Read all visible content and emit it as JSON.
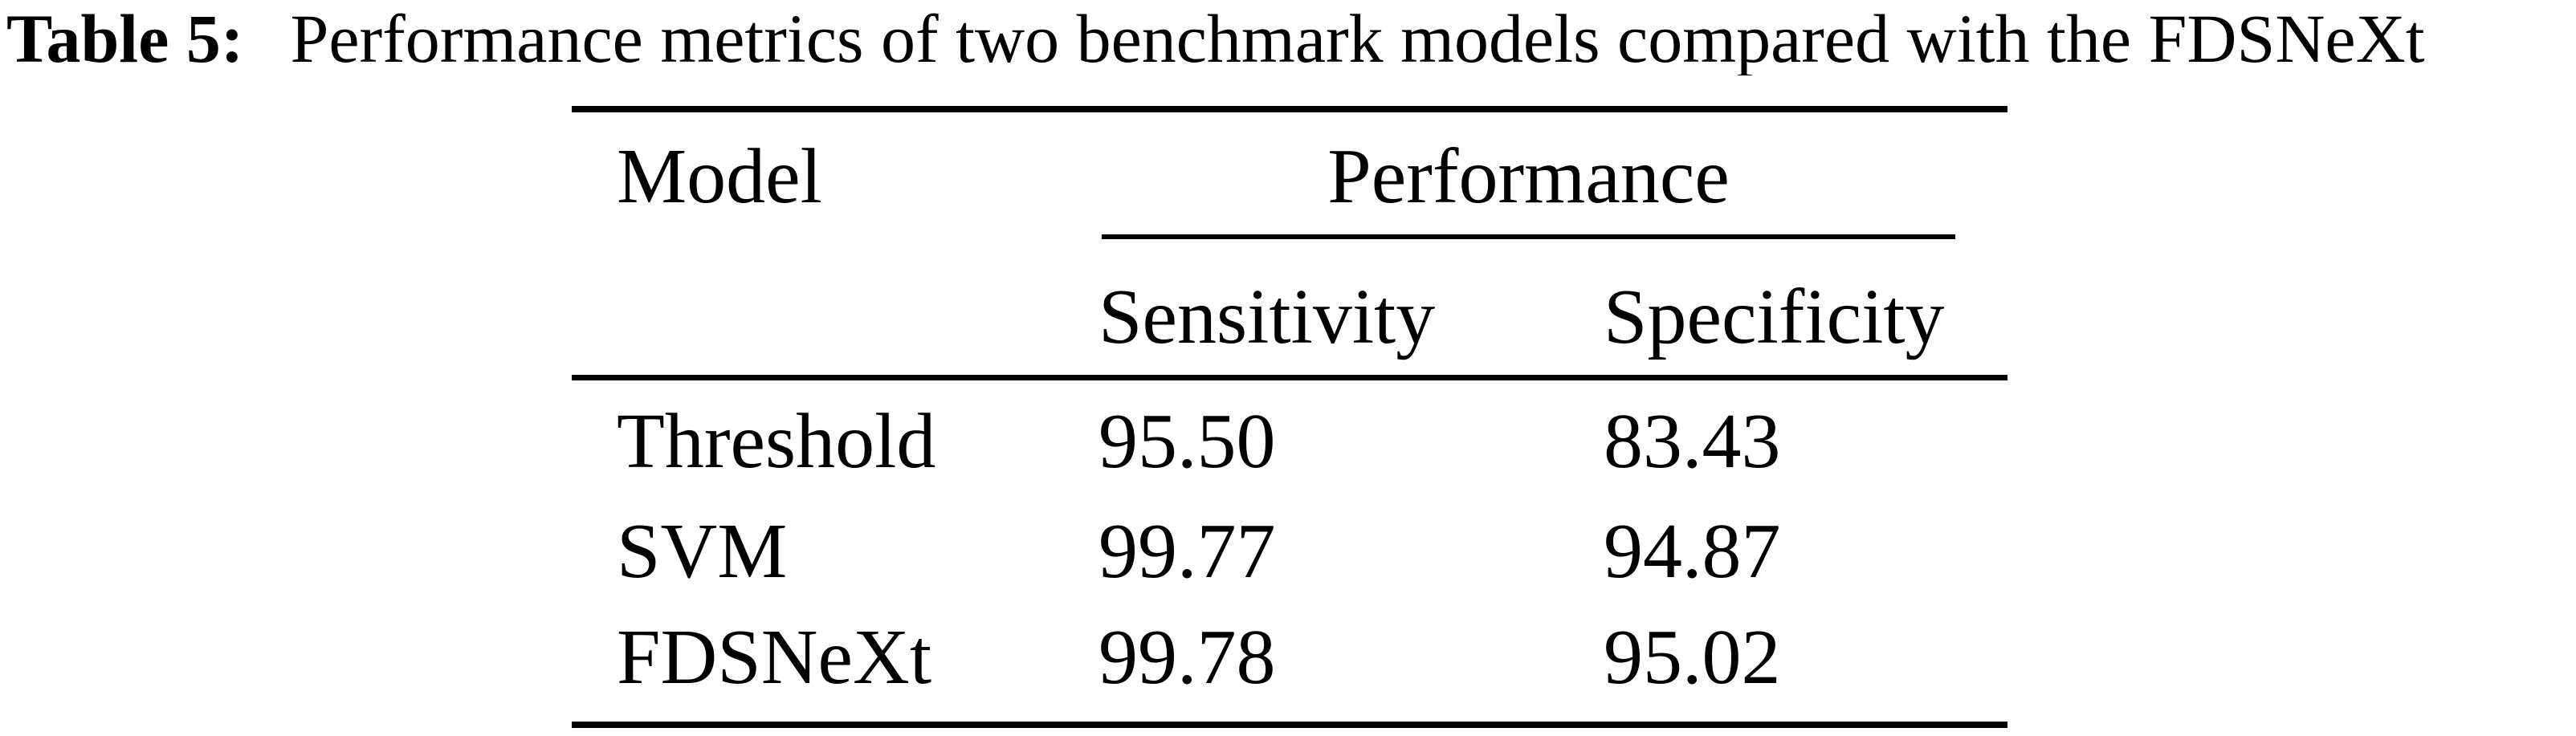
{
  "caption": {
    "label": "Table 5:",
    "text": "Performance metrics of two benchmark models compared with the FDSNeXt"
  },
  "table": {
    "col1_header": "Model",
    "group_header": "Performance",
    "sub_headers": [
      "Sensitivity",
      "Specificity"
    ],
    "rows": [
      {
        "model": "Threshold",
        "sensitivity": "95.50",
        "specificity": "83.43"
      },
      {
        "model": "SVM",
        "sensitivity": "99.77",
        "specificity": "94.87"
      },
      {
        "model": "FDSNeXt",
        "sensitivity": "99.78",
        "specificity": "95.02"
      }
    ]
  },
  "chart_data": {
    "type": "table",
    "title": "Table 5: Performance metrics of two benchmark models compared with the FDSNeXt",
    "columns": [
      "Model",
      "Sensitivity",
      "Specificity"
    ],
    "rows": [
      [
        "Threshold",
        95.5,
        83.43
      ],
      [
        "SVM",
        99.77,
        94.87
      ],
      [
        "FDSNeXt",
        99.78,
        95.02
      ]
    ]
  },
  "colors": {
    "text": "#000000",
    "background": "#ffffff",
    "rule": "#000000"
  }
}
